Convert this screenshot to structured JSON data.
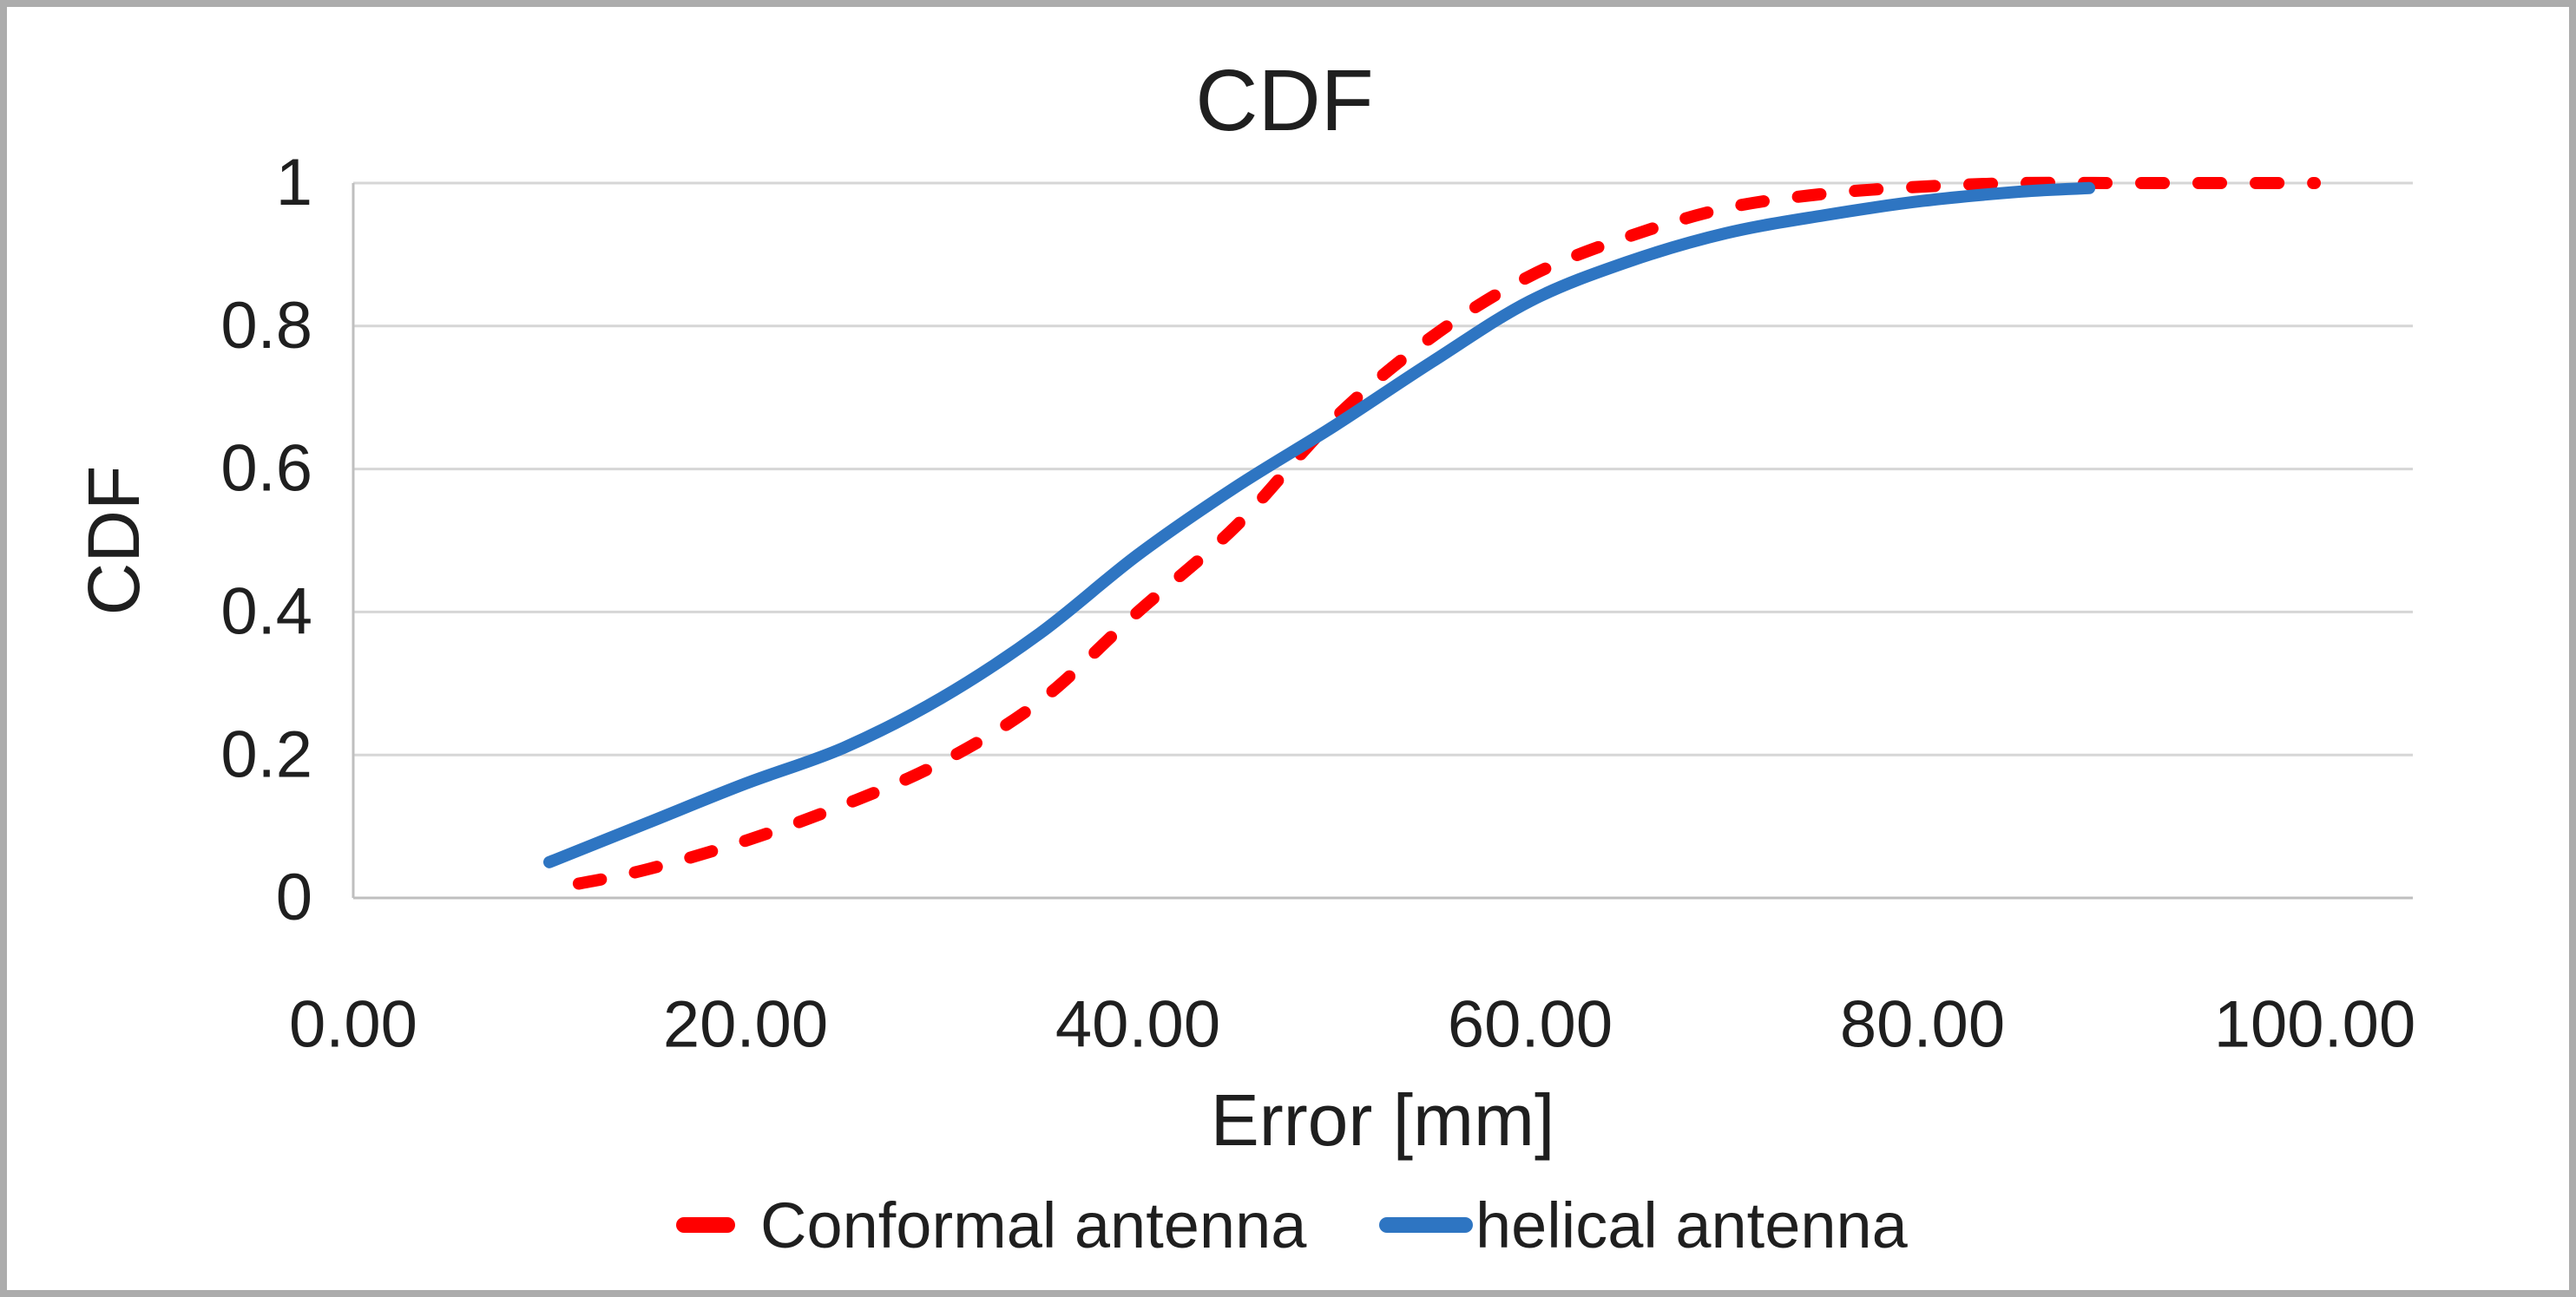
{
  "window": {
    "background": "#FFFFFF",
    "frame_border_color": "#ACACAC"
  },
  "chart_data": {
    "type": "line",
    "title": "CDF",
    "xlabel": "Error [mm]",
    "ylabel": "CDF",
    "xlim": [
      0,
      105
    ],
    "ylim": [
      0,
      1
    ],
    "grid": "horizontal",
    "gridline_color": "#D6D6D6",
    "axis_line_color": "#BFBFBF",
    "legend_position": "bottom",
    "x_ticks": [
      {
        "value": 0,
        "label": "0.00"
      },
      {
        "value": 20,
        "label": "20.00"
      },
      {
        "value": 40,
        "label": "40.00"
      },
      {
        "value": 60,
        "label": "60.00"
      },
      {
        "value": 80,
        "label": "80.00"
      },
      {
        "value": 100,
        "label": "100.00"
      }
    ],
    "y_ticks": [
      {
        "value": 0,
        "label": "0"
      },
      {
        "value": 0.2,
        "label": "0.2"
      },
      {
        "value": 0.4,
        "label": "0.4"
      },
      {
        "value": 0.6,
        "label": "0.6"
      },
      {
        "value": 0.8,
        "label": "0.8"
      },
      {
        "value": 1,
        "label": "1"
      }
    ],
    "series": [
      {
        "name": "Conformal antenna",
        "color": "#FF0000",
        "style": "dashed",
        "points": [
          [
            11.5,
            0.02
          ],
          [
            15,
            0.04
          ],
          [
            20,
            0.08
          ],
          [
            25,
            0.13
          ],
          [
            30,
            0.19
          ],
          [
            35,
            0.275
          ],
          [
            40,
            0.4
          ],
          [
            45,
            0.52
          ],
          [
            50,
            0.67
          ],
          [
            55,
            0.785
          ],
          [
            60,
            0.87
          ],
          [
            65,
            0.925
          ],
          [
            70,
            0.965
          ],
          [
            75,
            0.985
          ],
          [
            80,
            0.995
          ],
          [
            85,
            1.0
          ],
          [
            90,
            1.0
          ],
          [
            95,
            1.0
          ],
          [
            100,
            1.0
          ]
        ]
      },
      {
        "name": "helical antenna",
        "color": "#2E75C2",
        "style": "solid",
        "points": [
          [
            10,
            0.05
          ],
          [
            15,
            0.105
          ],
          [
            20,
            0.16
          ],
          [
            25,
            0.21
          ],
          [
            30,
            0.28
          ],
          [
            35,
            0.37
          ],
          [
            40,
            0.48
          ],
          [
            45,
            0.575
          ],
          [
            50,
            0.66
          ],
          [
            55,
            0.75
          ],
          [
            60,
            0.835
          ],
          [
            65,
            0.89
          ],
          [
            70,
            0.93
          ],
          [
            75,
            0.955
          ],
          [
            80,
            0.975
          ],
          [
            85,
            0.988
          ],
          [
            88.5,
            0.993
          ]
        ]
      }
    ]
  }
}
